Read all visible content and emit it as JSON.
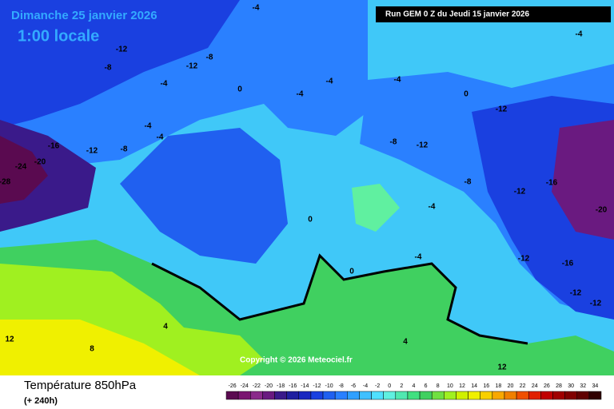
{
  "header": {
    "date": "Dimanche 25 janvier 2026",
    "time": "1:00 locale",
    "run": "Run GEM 0 Z du Jeudi 15 janvier 2026",
    "copyright": "Copyright © 2026 Meteociel.fr"
  },
  "footer": {
    "title": "Température 850hPa",
    "lead": "(+ 240h)"
  },
  "colorbar": {
    "values": [
      -26,
      -24,
      -22,
      -20,
      -18,
      -16,
      -14,
      -12,
      -10,
      -8,
      -6,
      -4,
      -2,
      0,
      2,
      4,
      6,
      8,
      10,
      12,
      14,
      16,
      18,
      20,
      22,
      24,
      26,
      28,
      30,
      32,
      34
    ],
    "colors": [
      "#5a0a50",
      "#7a1470",
      "#8a2a8a",
      "#6a1a80",
      "#3a1a8a",
      "#2020a0",
      "#1a28c0",
      "#1a40e0",
      "#2060f0",
      "#2a80ff",
      "#30a0ff",
      "#40c0ff",
      "#50e0ff",
      "#60f0e0",
      "#50e8b0",
      "#40e080",
      "#40d060",
      "#70e040",
      "#a0f020",
      "#d0f000",
      "#f0f000",
      "#f8d000",
      "#f8a800",
      "#f08000",
      "#f05000",
      "#e02000",
      "#c00000",
      "#a00000",
      "#800000",
      "#600000",
      "#300000"
    ]
  },
  "contour_labels": [
    -12,
    -8,
    -4,
    0,
    -4,
    -4,
    -4,
    0,
    -12,
    -16,
    -12,
    -8,
    -4,
    -4,
    -24,
    -20,
    -28,
    -8,
    -12,
    -8,
    -12,
    -16,
    -20,
    -12,
    -16,
    -4,
    0,
    0,
    -4,
    12,
    8,
    4,
    4,
    12,
    -4,
    -12,
    -12,
    -4,
    -12,
    -8
  ]
}
